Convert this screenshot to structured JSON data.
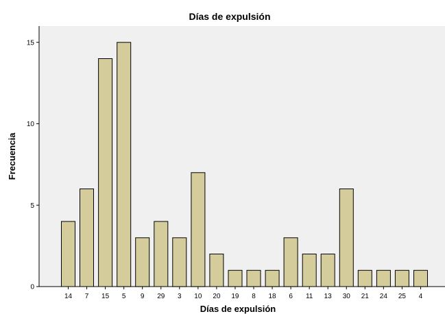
{
  "chart_data": {
    "type": "bar",
    "title": "Días de expulsión",
    "xlabel": "Días de expulsión",
    "ylabel": "Frecuencia",
    "categories": [
      "14",
      "7",
      "15",
      "5",
      "9",
      "29",
      "3",
      "10",
      "20",
      "19",
      "8",
      "18",
      "6",
      "11",
      "13",
      "30",
      "21",
      "24",
      "25",
      "4"
    ],
    "values": [
      4,
      6,
      14,
      15,
      3,
      4,
      3,
      7,
      2,
      1,
      1,
      1,
      3,
      2,
      2,
      6,
      1,
      1,
      1,
      1
    ],
    "ylim": [
      0,
      16
    ],
    "yticks": [
      "0",
      "5",
      "10",
      "15"
    ],
    "grid": false,
    "colors": {
      "plot_background": "#f0f0f0",
      "bar_fill": "#d4cc9a",
      "bar_stroke": "#000000",
      "axis": "#000000"
    }
  }
}
